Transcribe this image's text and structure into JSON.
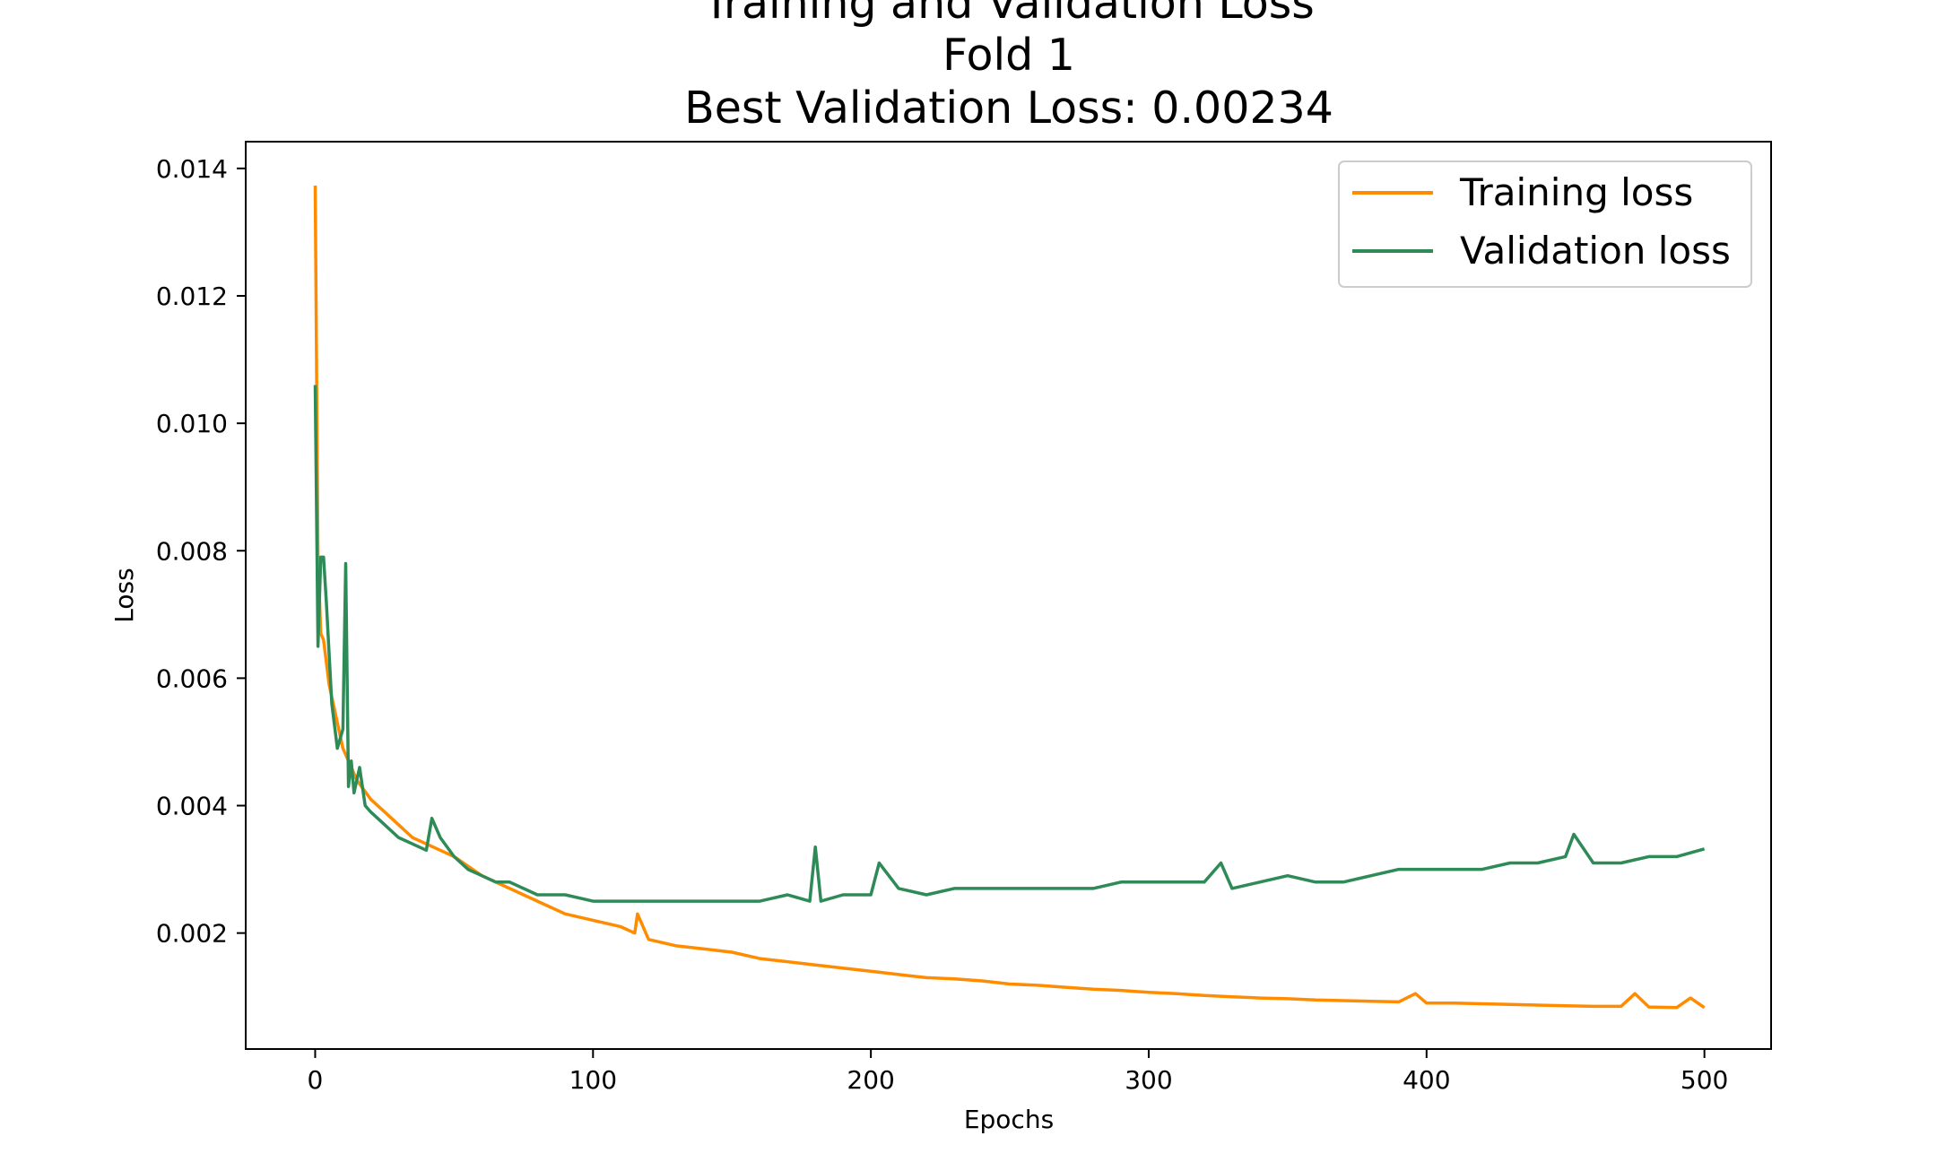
{
  "chart_data": {
    "type": "line",
    "title_lines": [
      "Training and Validation Loss",
      "Fold 1",
      "Best Validation Loss: 0.00234"
    ],
    "xlabel": "Epochs",
    "ylabel": "Loss",
    "xlim": [
      -25,
      524
    ],
    "ylim": [
      0.00018,
      0.01442
    ],
    "xticks": [
      0,
      100,
      200,
      300,
      400,
      500
    ],
    "yticks": [
      0.002,
      0.004,
      0.006,
      0.008,
      0.01,
      0.012,
      0.014
    ],
    "ytick_labels": [
      "0.002",
      "0.004",
      "0.006",
      "0.008",
      "0.010",
      "0.012",
      "0.014"
    ],
    "legend_position": "upper right",
    "series": [
      {
        "name": "Training loss",
        "color": "#ff8c00",
        "x": [
          0,
          1,
          2,
          3,
          5,
          8,
          10,
          12,
          15,
          20,
          25,
          30,
          35,
          40,
          45,
          50,
          60,
          70,
          80,
          90,
          100,
          110,
          115,
          116,
          120,
          130,
          140,
          150,
          160,
          170,
          180,
          190,
          200,
          210,
          220,
          230,
          240,
          250,
          260,
          270,
          280,
          290,
          300,
          310,
          320,
          330,
          340,
          350,
          360,
          370,
          380,
          390,
          396,
          400,
          410,
          420,
          430,
          440,
          450,
          460,
          470,
          475,
          480,
          490,
          495,
          500
        ],
        "y": [
          0.01373,
          0.0079,
          0.0067,
          0.0066,
          0.0059,
          0.0053,
          0.0049,
          0.0047,
          0.0044,
          0.0041,
          0.0039,
          0.0037,
          0.0035,
          0.0034,
          0.0033,
          0.0032,
          0.0029,
          0.0027,
          0.0025,
          0.0023,
          0.0022,
          0.0021,
          0.002,
          0.0023,
          0.0019,
          0.0018,
          0.00175,
          0.0017,
          0.0016,
          0.00155,
          0.0015,
          0.00145,
          0.0014,
          0.00135,
          0.0013,
          0.00128,
          0.00125,
          0.0012,
          0.00118,
          0.00115,
          0.00112,
          0.0011,
          0.00107,
          0.00105,
          0.00102,
          0.001,
          0.00098,
          0.00097,
          0.00095,
          0.00094,
          0.00093,
          0.00092,
          0.00105,
          0.0009,
          0.0009,
          0.00089,
          0.00088,
          0.00087,
          0.00086,
          0.00085,
          0.00085,
          0.00105,
          0.00084,
          0.00083,
          0.00098,
          0.00083
        ]
      },
      {
        "name": "Validation loss",
        "color": "#2e8b57",
        "x": [
          0,
          1,
          2,
          3,
          4,
          6,
          8,
          10,
          11,
          12,
          13,
          14,
          16,
          18,
          20,
          25,
          30,
          35,
          40,
          42,
          45,
          50,
          55,
          60,
          65,
          70,
          80,
          90,
          100,
          110,
          120,
          130,
          140,
          150,
          160,
          170,
          178,
          180,
          182,
          190,
          200,
          203,
          210,
          220,
          230,
          240,
          250,
          260,
          270,
          280,
          290,
          300,
          310,
          320,
          326,
          330,
          340,
          350,
          360,
          370,
          380,
          390,
          400,
          410,
          420,
          430,
          440,
          450,
          453,
          460,
          470,
          480,
          490,
          500
        ],
        "y": [
          0.0106,
          0.0065,
          0.0079,
          0.0079,
          0.0072,
          0.0056,
          0.0049,
          0.0052,
          0.0078,
          0.0043,
          0.0047,
          0.0042,
          0.0046,
          0.004,
          0.0039,
          0.0037,
          0.0035,
          0.0034,
          0.0033,
          0.0038,
          0.0035,
          0.0032,
          0.003,
          0.0029,
          0.0028,
          0.0028,
          0.0026,
          0.0026,
          0.0025,
          0.0025,
          0.0025,
          0.0025,
          0.0025,
          0.0025,
          0.0025,
          0.0026,
          0.0025,
          0.00335,
          0.0025,
          0.0026,
          0.0026,
          0.0031,
          0.0027,
          0.0026,
          0.0027,
          0.0027,
          0.0027,
          0.0027,
          0.0027,
          0.0027,
          0.0028,
          0.0028,
          0.0028,
          0.0028,
          0.0031,
          0.0027,
          0.0028,
          0.0029,
          0.0028,
          0.0028,
          0.0029,
          0.003,
          0.003,
          0.003,
          0.003,
          0.0031,
          0.0031,
          0.0032,
          0.00355,
          0.0031,
          0.0031,
          0.0032,
          0.0032,
          0.00332
        ]
      }
    ]
  }
}
